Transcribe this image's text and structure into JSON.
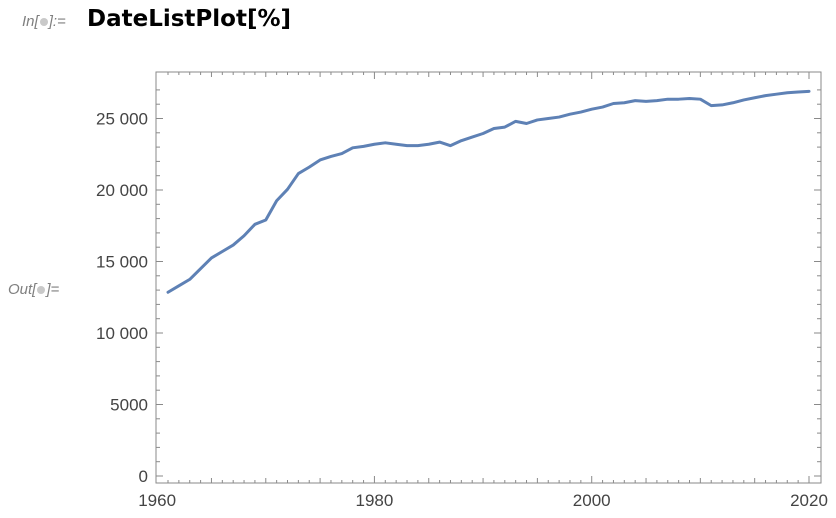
{
  "notebook": {
    "input_prompt": "In[",
    "input_prompt_end": "]:=",
    "output_prompt": "Out[",
    "output_prompt_end": "]=",
    "input_code": "DateListPlot[%]"
  },
  "colors": {
    "line": "#5e81b5",
    "axis": "#8a8a8a",
    "text": "#444444",
    "prompt": "#7f7f7f"
  },
  "chart_data": {
    "type": "line",
    "title": "",
    "xlabel": "",
    "ylabel": "",
    "x_axis_type": "date",
    "grid": false,
    "legend": "none",
    "frame": true,
    "xlim": [
      1960.5,
      2021
    ],
    "ylim": [
      0,
      28000
    ],
    "x_ticks": [
      1960,
      1980,
      2000,
      2020
    ],
    "x_tick_labels": [
      "1960",
      "1980",
      "2000",
      "2020"
    ],
    "y_ticks": [
      0,
      5000,
      10000,
      15000,
      20000,
      25000
    ],
    "y_tick_labels": [
      "0",
      "5000",
      "10 000",
      "15 000",
      "20 000",
      "25 000"
    ],
    "series": [
      {
        "x": [
          1961,
          1962,
          1963,
          1964,
          1965,
          1966,
          1967,
          1968,
          1969,
          1970,
          1971,
          1972,
          1973,
          1974,
          1975,
          1976,
          1977,
          1978,
          1979,
          1980,
          1981,
          1982,
          1983,
          1984,
          1985,
          1986,
          1987,
          1988,
          1989,
          1990,
          1991,
          1992,
          1993,
          1994,
          1995,
          1996,
          1997,
          1998,
          1999,
          2000,
          2001,
          2002,
          2003,
          2004,
          2005,
          2006,
          2007,
          2008,
          2009,
          2010,
          2011,
          2012,
          2013,
          2014,
          2015,
          2016,
          2017,
          2018,
          2019,
          2020
        ],
        "values": [
          12850,
          13300,
          13750,
          14500,
          15250,
          15700,
          16150,
          16800,
          17600,
          17900,
          19250,
          20050,
          21150,
          21600,
          22100,
          22350,
          22550,
          22950,
          23050,
          23200,
          23300,
          23200,
          23100,
          23100,
          23200,
          23350,
          23100,
          23450,
          23700,
          23950,
          24300,
          24400,
          24800,
          24650,
          24900,
          25000,
          25100,
          25300,
          25450,
          25650,
          25800,
          26050,
          26100,
          26250,
          26200,
          26250,
          26350,
          26350,
          26400,
          26350,
          25900,
          25950,
          26100,
          26300,
          26450,
          26600,
          26700,
          26800,
          26850,
          26900
        ]
      }
    ]
  }
}
